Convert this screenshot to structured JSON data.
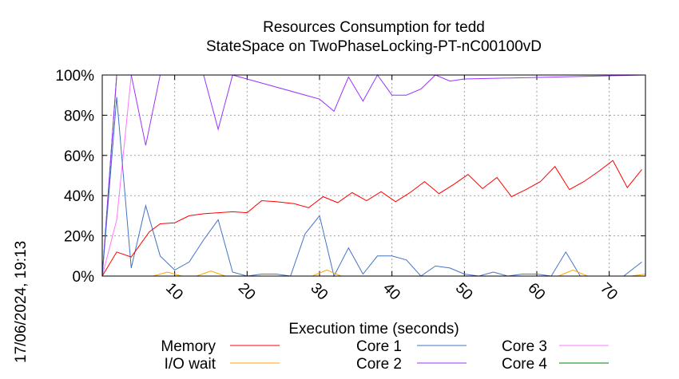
{
  "chart_data": {
    "type": "line",
    "title": "Resources Consumption for tedd",
    "subtitle": "StateSpace on TwoPhaseLocking-PT-nC00100vD",
    "xlabel": "Execution time (seconds)",
    "ylabel": "",
    "side_label": "17/06/2024, 19:13",
    "xlim": [
      0,
      75
    ],
    "ylim": [
      0,
      100
    ],
    "xticks": [
      10,
      20,
      30,
      40,
      50,
      60,
      70
    ],
    "yticks": [
      0,
      20,
      40,
      60,
      80,
      100
    ],
    "ytick_labels": [
      "0%",
      "20%",
      "40%",
      "60%",
      "80%",
      "100%"
    ],
    "grid": true,
    "legend_position": "bottom",
    "series": [
      {
        "name": "Memory",
        "color": "#ff0000",
        "x": [
          0,
          2,
          4,
          6.5,
          8,
          10,
          12,
          14,
          18,
          20,
          22,
          24,
          26.5,
          28.5,
          30.5,
          32.5,
          34.5,
          36.5,
          38.5,
          40.5,
          42.5,
          44.5,
          46.5,
          48.5,
          50.5,
          52.5,
          54.5,
          56.5,
          58.5,
          60.5,
          62.5,
          64.5,
          66.5,
          68.5,
          70.5,
          72.5,
          74.5
        ],
        "y": [
          0,
          12,
          9.5,
          22,
          26,
          26.5,
          30,
          31,
          32,
          31.5,
          37.5,
          37,
          36,
          34,
          39.5,
          36.5,
          41.5,
          37.5,
          42,
          37,
          41.5,
          47,
          41,
          45.5,
          50.5,
          43.5,
          49,
          39.5,
          43,
          47,
          54.5,
          43,
          47,
          52,
          57.5,
          44,
          53
        ]
      },
      {
        "name": "I/O wait",
        "color": "#ffa500",
        "x": [
          0,
          7,
          9,
          11,
          13,
          15,
          17,
          19,
          21,
          23,
          25,
          27,
          29,
          31,
          33,
          35,
          37,
          39,
          41,
          43,
          45,
          47,
          49,
          51,
          53,
          55,
          57,
          59,
          61,
          63,
          65,
          67,
          69,
          71,
          73,
          75
        ],
        "y": [
          0,
          0,
          2,
          0,
          0,
          2.5,
          0,
          0,
          0,
          0,
          0,
          0,
          0,
          3,
          0,
          0,
          0,
          0,
          0,
          0,
          0,
          0,
          0,
          0,
          0,
          0,
          0,
          0,
          0,
          0,
          3,
          0,
          0,
          0,
          0,
          1
        ]
      },
      {
        "name": "Core 1",
        "color": "#4472c4",
        "x": [
          0,
          2,
          4,
          6,
          8,
          10,
          12,
          14,
          16,
          18,
          20,
          22,
          24,
          26,
          28,
          30,
          32,
          34,
          36,
          38,
          40,
          42,
          44,
          46,
          48,
          50,
          52,
          54,
          56,
          58,
          60,
          62,
          64,
          66,
          68,
          70,
          72,
          74.5
        ],
        "y": [
          0,
          89,
          4,
          35,
          10,
          3,
          7,
          18,
          28,
          2,
          0,
          1,
          1,
          0,
          21,
          30,
          0,
          14,
          1,
          10,
          10,
          8,
          0,
          5,
          4,
          1,
          0,
          2,
          0,
          1,
          1,
          0,
          12,
          0,
          0,
          0,
          0,
          7
        ]
      },
      {
        "name": "Core 2",
        "color": "#9933ff",
        "x": [
          0,
          2,
          4,
          6,
          8,
          14,
          16,
          18,
          30,
          32,
          34,
          36,
          38,
          40,
          42,
          44,
          46,
          48,
          50,
          75
        ],
        "y": [
          0,
          100,
          100,
          65,
          100,
          100,
          73,
          100,
          88,
          82,
          99,
          87,
          100,
          90,
          90,
          93,
          100,
          97,
          98,
          100
        ]
      },
      {
        "name": "Core 3",
        "color": "#ff77ff",
        "x": [
          0,
          2,
          4,
          75
        ],
        "y": [
          0,
          28,
          100,
          100
        ]
      },
      {
        "name": "Core 4",
        "color": "#008000",
        "x": [
          0,
          2,
          75
        ],
        "y": [
          0,
          100,
          100
        ]
      }
    ]
  }
}
